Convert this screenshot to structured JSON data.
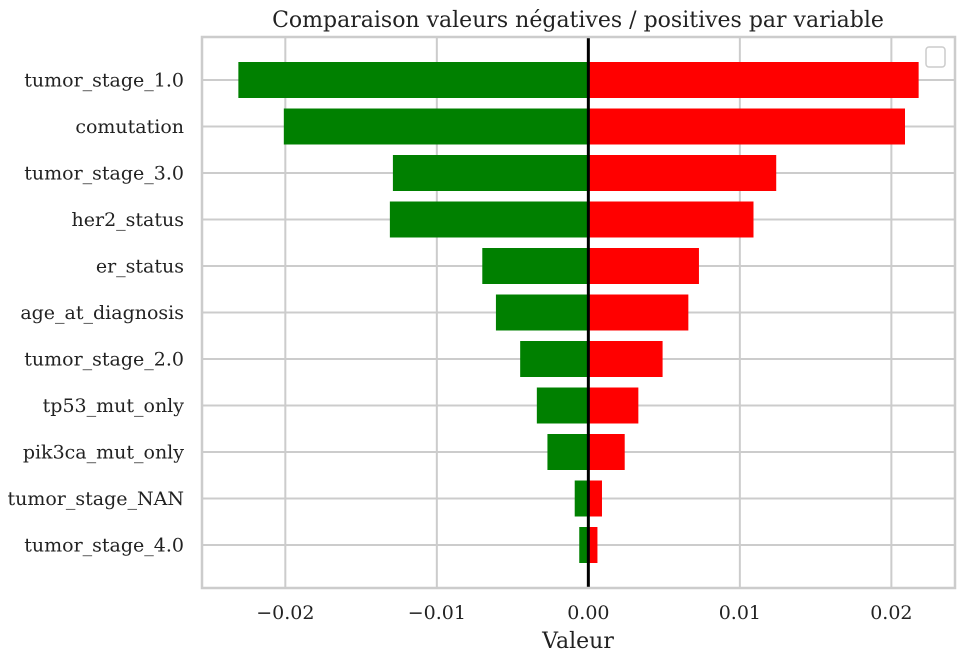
{
  "chart_data": {
    "type": "bar",
    "orientation": "horizontal",
    "title": "Comparaison valeurs négatives / positives par variable",
    "xlabel": "Valeur",
    "ylabel": "",
    "xlim": [
      -0.0255,
      0.0242
    ],
    "xticks": [
      -0.02,
      -0.01,
      0.0,
      0.01,
      0.02
    ],
    "xtick_labels": [
      "−0.02",
      "−0.01",
      "0.00",
      "0.01",
      "0.02"
    ],
    "grid": true,
    "legend": "top-right (empty)",
    "zero_line": true,
    "categories": [
      "tumor_stage_1.0",
      "comutation",
      "tumor_stage_3.0",
      "her2_status",
      "er_status",
      "age_at_diagnosis",
      "tumor_stage_2.0",
      "tp53_mut_only",
      "pik3ca_mut_only",
      "tumor_stage_NAN",
      "tumor_stage_4.0"
    ],
    "series": [
      {
        "color": "#008000",
        "values": [
          -0.0231,
          -0.0201,
          -0.0129,
          -0.0131,
          -0.007,
          -0.0061,
          -0.0045,
          -0.0034,
          -0.0027,
          -0.0009,
          -0.0006
        ]
      },
      {
        "color": "#ff0000",
        "values": [
          0.0218,
          0.0209,
          0.0124,
          0.0109,
          0.0073,
          0.0066,
          0.0049,
          0.0033,
          0.0024,
          0.0009,
          0.0006
        ]
      }
    ]
  }
}
